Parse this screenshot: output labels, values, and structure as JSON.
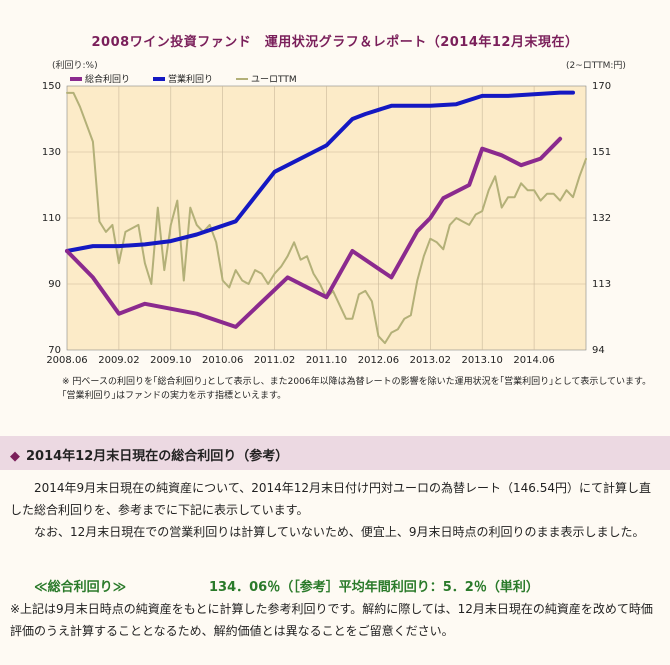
{
  "title": "2008ワイン投資ファンド　運用状況グラフ＆レポート（2014年12月末現在）",
  "left_unit": "(利回り:%)",
  "right_unit": "(2~ロTTM:円)",
  "chart_data": {
    "type": "line",
    "x": [
      "2008.06",
      "2008.08",
      "2008.10",
      "2008.12",
      "2009.02",
      "2009.04",
      "2009.06",
      "2009.08",
      "2009.10",
      "2009.12",
      "2010.02",
      "2010.04",
      "2010.06",
      "2010.08",
      "2010.10",
      "2010.12",
      "2011.02",
      "2011.04",
      "2011.06",
      "2011.08",
      "2011.10",
      "2011.12",
      "2012.02",
      "2012.04",
      "2012.06",
      "2012.08",
      "2012.10",
      "2012.12",
      "2013.02",
      "2013.04",
      "2013.06",
      "2013.08",
      "2013.10",
      "2013.12",
      "2014.02",
      "2014.04",
      "2014.06",
      "2014.08",
      "2014.10",
      "2014.12"
    ],
    "x_ticks": [
      "2008.06",
      "2009.02",
      "2009.10",
      "2010.06",
      "2011.02",
      "2011.10",
      "2012.06",
      "2013.02",
      "2013.10",
      "2014.06"
    ],
    "y_left_ticks": [
      70,
      90,
      110,
      130,
      150
    ],
    "y_right_ticks": [
      94,
      113,
      132,
      151,
      170
    ],
    "ylim_left": [
      70,
      150
    ],
    "ylim_right": [
      94,
      170
    ],
    "series": [
      {
        "name": "総合利回り",
        "axis": "left",
        "color": "#8b2a8e",
        "width": 4,
        "points": [
          [
            "2008.06",
            100
          ],
          [
            "2008.10",
            92
          ],
          [
            "2009.02",
            81
          ],
          [
            "2009.06",
            84
          ],
          [
            "2010.02",
            81
          ],
          [
            "2010.08",
            77
          ],
          [
            "2011.04",
            92
          ],
          [
            "2011.10",
            86
          ],
          [
            "2012.02",
            100
          ],
          [
            "2012.08",
            92
          ],
          [
            "2012.12",
            106
          ],
          [
            "2013.02",
            110
          ],
          [
            "2013.04",
            116
          ],
          [
            "2013.08",
            120
          ],
          [
            "2013.10",
            131
          ],
          [
            "2014.01",
            129
          ],
          [
            "2014.04",
            126
          ],
          [
            "2014.07",
            128
          ],
          [
            "2014.10",
            134
          ]
        ]
      },
      {
        "name": "営業利回り",
        "axis": "left",
        "color": "#1418c2",
        "width": 4,
        "points": [
          [
            "2008.06",
            100
          ],
          [
            "2008.10",
            101.5
          ],
          [
            "2009.02",
            101.5
          ],
          [
            "2009.06",
            102
          ],
          [
            "2009.10",
            103
          ],
          [
            "2010.02",
            105
          ],
          [
            "2010.08",
            109
          ],
          [
            "2011.02",
            124
          ],
          [
            "2011.10",
            132
          ],
          [
            "2012.02",
            140
          ],
          [
            "2012.04",
            141.5
          ],
          [
            "2012.08",
            144
          ],
          [
            "2013.02",
            144
          ],
          [
            "2013.06",
            144.5
          ],
          [
            "2013.10",
            147
          ],
          [
            "2014.02",
            147
          ],
          [
            "2014.06",
            147.5
          ],
          [
            "2014.10",
            148
          ],
          [
            "2014.12",
            148
          ]
        ]
      },
      {
        "name": "ユーロTTM",
        "axis": "right",
        "color": "#b3b078",
        "width": 2,
        "points": [
          [
            "2008.06",
            168
          ],
          [
            "2008.07",
            168
          ],
          [
            "2008.08",
            164
          ],
          [
            "2008.10",
            154
          ],
          [
            "2008.11",
            131
          ],
          [
            "2008.12",
            128
          ],
          [
            "2009.01",
            130
          ],
          [
            "2009.02",
            119
          ],
          [
            "2009.03",
            128
          ],
          [
            "2009.04",
            129
          ],
          [
            "2009.05",
            130
          ],
          [
            "2009.06",
            119
          ],
          [
            "2009.07",
            113
          ],
          [
            "2009.08",
            135
          ],
          [
            "2009.09",
            117
          ],
          [
            "2009.10",
            130
          ],
          [
            "2009.11",
            137
          ],
          [
            "2009.12",
            114
          ],
          [
            "2010.01",
            135
          ],
          [
            "2010.02",
            130
          ],
          [
            "2010.03",
            128
          ],
          [
            "2010.04",
            130
          ],
          [
            "2010.05",
            125
          ],
          [
            "2010.06",
            114
          ],
          [
            "2010.07",
            112
          ],
          [
            "2010.08",
            117
          ],
          [
            "2010.09",
            114
          ],
          [
            "2010.10",
            113
          ],
          [
            "2010.11",
            117
          ],
          [
            "2010.12",
            116
          ],
          [
            "2011.01",
            113
          ],
          [
            "2011.02",
            116
          ],
          [
            "2011.03",
            118
          ],
          [
            "2011.04",
            121
          ],
          [
            "2011.05",
            125
          ],
          [
            "2011.06",
            120
          ],
          [
            "2011.07",
            121
          ],
          [
            "2011.08",
            116
          ],
          [
            "2011.09",
            113
          ],
          [
            "2011.10",
            109
          ],
          [
            "2011.11",
            111
          ],
          [
            "2011.12",
            107
          ],
          [
            "2012.01",
            103
          ],
          [
            "2012.02",
            103
          ],
          [
            "2012.03",
            110
          ],
          [
            "2012.04",
            111
          ],
          [
            "2012.05",
            108
          ],
          [
            "2012.06",
            98
          ],
          [
            "2012.07",
            96
          ],
          [
            "2012.08",
            99
          ],
          [
            "2012.09",
            100
          ],
          [
            "2012.10",
            103
          ],
          [
            "2012.11",
            104
          ],
          [
            "2012.12",
            114
          ],
          [
            "2013.01",
            121
          ],
          [
            "2013.02",
            126
          ],
          [
            "2013.03",
            125
          ],
          [
            "2013.04",
            123
          ],
          [
            "2013.05",
            130
          ],
          [
            "2013.06",
            132
          ],
          [
            "2013.07",
            131
          ],
          [
            "2013.08",
            130
          ],
          [
            "2013.09",
            133
          ],
          [
            "2013.10",
            134
          ],
          [
            "2013.11",
            140
          ],
          [
            "2013.12",
            144
          ],
          [
            "2014.01",
            135
          ],
          [
            "2014.02",
            138
          ],
          [
            "2014.03",
            138
          ],
          [
            "2014.04",
            142
          ],
          [
            "2014.05",
            140
          ],
          [
            "2014.06",
            140
          ],
          [
            "2014.07",
            137
          ],
          [
            "2014.08",
            139
          ],
          [
            "2014.09",
            139
          ],
          [
            "2014.10",
            137
          ],
          [
            "2014.11",
            140
          ],
          [
            "2014.12",
            138
          ],
          [
            "2015.01",
            144
          ],
          [
            "2015.02",
            149
          ]
        ]
      }
    ],
    "grid": true,
    "legend": "top-left"
  },
  "note1": "※ 円ベースの利回りを｢総合利回り｣として表示し、また2006年以降は為替レートの影響を除いた運用状況を｢営業利回り｣として表示しています。｢営業利回り｣はファンドの実力を示す指標といえます。",
  "section_title": "2014年12月末日現在の総合利回り（参考）",
  "para1": "2014年9月末日現在の純資産について、2014年12月末日付け円対ユーロの為替レート（146.54円）にて計算し直した総合利回りを、参考までに下記に表示しています。",
  "para2": "なお、12月末日現在での営業利回りは計算していないため、便宜上、9月末日時点の利回りのまま表示しました。",
  "highlight_label": "≪総合利回り≫",
  "highlight_value": "134．06％（［参考］平均年間利回り：5．2％（単利）",
  "note2": "※上記は9月末日時点の純資産をもとに計算した参考利回りです。解約に際しては、12月末日現在の純資産を改めて時価評価のうえ計算することとなるため、解約価値とは異なることをご留意ください。"
}
